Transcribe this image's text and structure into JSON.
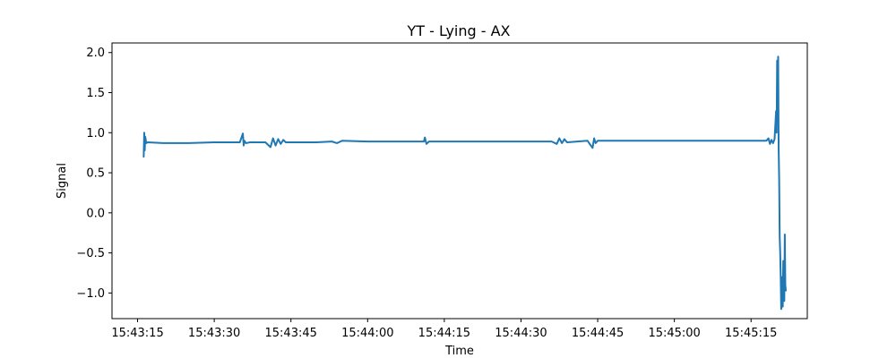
{
  "chart_data": {
    "type": "line",
    "title": "YT - Lying - AX",
    "xlabel": "Time",
    "ylabel": "Signal",
    "x_type": "time",
    "xlim": [
      "15:43:10",
      "15:45:26"
    ],
    "ylim": [
      -1.32,
      2.12
    ],
    "x_ticks": [
      "15:43:15",
      "15:43:30",
      "15:43:45",
      "15:44:00",
      "15:44:15",
      "15:44:30",
      "15:44:45",
      "15:45:00",
      "15:45:15"
    ],
    "y_ticks": [
      2.0,
      1.5,
      1.0,
      0.5,
      0.0,
      -0.5,
      -1.0
    ],
    "y_tick_labels": [
      "2.0",
      "1.5",
      "1.0",
      "0.5",
      "0.0",
      "−0.5",
      "−1.0"
    ],
    "grid": false,
    "color": "#1f77b4",
    "series": [
      {
        "x": [
          "15:43:16.2",
          "15:43:16.3",
          "15:43:16.4",
          "15:43:16.5",
          "15:43:16.7",
          "15:43:17.0",
          "15:43:20.0",
          "15:43:25.0",
          "15:43:30.0",
          "15:43:35.0",
          "15:43:35.6",
          "15:43:35.75",
          "15:43:35.9",
          "15:43:36.2",
          "15:43:37.0",
          "15:43:40.0",
          "15:43:41.0",
          "15:43:41.5",
          "15:43:42.0",
          "15:43:42.5",
          "15:43:43.0",
          "15:43:43.5",
          "15:43:44.0",
          "15:43:45.0",
          "15:43:50.0",
          "15:43:53.0",
          "15:43:54.0",
          "15:43:55.0",
          "15:44:00.0",
          "15:44:05.0",
          "15:44:10.0",
          "15:44:11.0",
          "15:44:11.2",
          "15:44:11.5",
          "15:44:12.0",
          "15:44:20.0",
          "15:44:30.0",
          "15:44:36.0",
          "15:44:37.0",
          "15:44:37.5",
          "15:44:38.0",
          "15:44:38.5",
          "15:44:39.0",
          "15:44:41.0",
          "15:44:43.0",
          "15:44:44.0",
          "15:44:44.3",
          "15:44:44.6",
          "15:44:45.0",
          "15:44:48.0",
          "15:44:50.0",
          "15:45:00.0",
          "15:45:10.0",
          "15:45:18.0",
          "15:45:18.4",
          "15:45:18.7",
          "15:45:19.0",
          "15:45:19.3",
          "15:45:19.6",
          "15:45:19.9",
          "15:45:20.0",
          "15:45:20.1",
          "15:45:20.2",
          "15:45:20.3",
          "15:45:20.4",
          "15:45:20.5",
          "15:45:20.6",
          "15:45:20.7",
          "15:45:20.8",
          "15:45:20.9",
          "15:45:21.0",
          "15:45:21.1",
          "15:45:21.2",
          "15:45:21.3",
          "15:45:21.4",
          "15:45:21.5",
          "15:45:21.6",
          "15:45:21.7",
          "15:45:21.8"
        ],
        "y": [
          0.7,
          1.0,
          0.78,
          0.95,
          0.87,
          0.88,
          0.87,
          0.87,
          0.88,
          0.88,
          0.99,
          0.84,
          0.9,
          0.87,
          0.88,
          0.88,
          0.82,
          0.93,
          0.84,
          0.92,
          0.86,
          0.91,
          0.88,
          0.88,
          0.88,
          0.89,
          0.87,
          0.9,
          0.89,
          0.89,
          0.89,
          0.89,
          0.94,
          0.86,
          0.89,
          0.89,
          0.89,
          0.89,
          0.86,
          0.93,
          0.87,
          0.92,
          0.88,
          0.89,
          0.9,
          0.81,
          0.93,
          0.87,
          0.9,
          0.9,
          0.9,
          0.9,
          0.9,
          0.9,
          0.93,
          0.86,
          0.91,
          0.87,
          0.92,
          1.27,
          1.0,
          1.9,
          1.5,
          1.95,
          0.8,
          0.4,
          -0.3,
          -0.5,
          -0.8,
          -1.2,
          -1.1,
          -0.8,
          -1.17,
          -0.6,
          -0.95,
          -1.1,
          -0.27,
          -0.9,
          -0.97
        ]
      }
    ]
  }
}
